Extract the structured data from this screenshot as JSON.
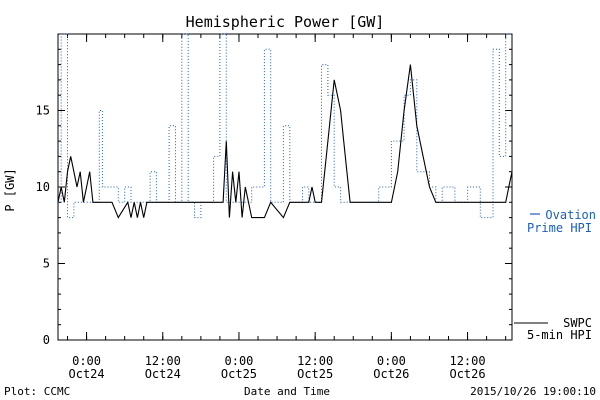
{
  "chart_data": {
    "type": "line",
    "title": "Hemispheric Power [GW]",
    "ylabel": "P [GW]",
    "xlabel": "Date and Time",
    "ylim": [
      0,
      20
    ],
    "xlim": [
      "2015-10-23 19:30",
      "2015-10-26 19:00"
    ],
    "y_ticks": [
      0,
      5,
      10,
      15
    ],
    "x_ticks": [
      {
        "time": "2015-10-24 00:00",
        "label": [
          "0:00",
          "Oct24"
        ]
      },
      {
        "time": "2015-10-24 12:00",
        "label": [
          "12:00",
          "Oct24"
        ]
      },
      {
        "time": "2015-10-25 00:00",
        "label": [
          "0:00",
          "Oct25"
        ]
      },
      {
        "time": "2015-10-25 12:00",
        "label": [
          "12:00",
          "Oct25"
        ]
      },
      {
        "time": "2015-10-26 00:00",
        "label": [
          "0:00",
          "Oct26"
        ]
      },
      {
        "time": "2015-10-26 12:00",
        "label": [
          "12:00",
          "Oct26"
        ]
      }
    ],
    "grid": false,
    "legend_position": "right",
    "series": [
      {
        "name": "Ovation Prime HPI",
        "legend_lines": [
          "Ovation",
          "Prime HPI"
        ],
        "color": "#1a5fc0",
        "style": "step-dotted",
        "points": [
          [
            "2015-10-23 19:30",
            9
          ],
          [
            "2015-10-23 20:00",
            20
          ],
          [
            "2015-10-23 21:00",
            8
          ],
          [
            "2015-10-23 22:00",
            9
          ],
          [
            "2015-10-24 02:00",
            15
          ],
          [
            "2015-10-24 02:30",
            10
          ],
          [
            "2015-10-24 05:00",
            9
          ],
          [
            "2015-10-24 06:00",
            10
          ],
          [
            "2015-10-24 07:00",
            9
          ],
          [
            "2015-10-24 10:00",
            11
          ],
          [
            "2015-10-24 11:00",
            9
          ],
          [
            "2015-10-24 13:00",
            14
          ],
          [
            "2015-10-24 14:00",
            9
          ],
          [
            "2015-10-24 15:00",
            20
          ],
          [
            "2015-10-24 16:00",
            9
          ],
          [
            "2015-10-24 17:00",
            8
          ],
          [
            "2015-10-24 18:00",
            9
          ],
          [
            "2015-10-24 20:00",
            12
          ],
          [
            "2015-10-24 21:00",
            20
          ],
          [
            "2015-10-24 22:00",
            9
          ],
          [
            "2015-10-25 02:00",
            10
          ],
          [
            "2015-10-25 04:00",
            19
          ],
          [
            "2015-10-25 05:00",
            9
          ],
          [
            "2015-10-25 07:00",
            14
          ],
          [
            "2015-10-25 08:00",
            9
          ],
          [
            "2015-10-25 10:00",
            10
          ],
          [
            "2015-10-25 11:00",
            9
          ],
          [
            "2015-10-25 12:30",
            9
          ],
          [
            "2015-10-25 13:00",
            18
          ],
          [
            "2015-10-25 14:00",
            16
          ],
          [
            "2015-10-25 15:00",
            10
          ],
          [
            "2015-10-25 16:00",
            9
          ],
          [
            "2015-10-25 22:00",
            10
          ],
          [
            "2015-10-26 00:00",
            13
          ],
          [
            "2015-10-26 02:00",
            16
          ],
          [
            "2015-10-26 03:00",
            17
          ],
          [
            "2015-10-26 04:00",
            11
          ],
          [
            "2015-10-26 06:00",
            10
          ],
          [
            "2015-10-26 07:00",
            9
          ],
          [
            "2015-10-26 08:00",
            10
          ],
          [
            "2015-10-26 10:00",
            9
          ],
          [
            "2015-10-26 12:00",
            10
          ],
          [
            "2015-10-26 14:00",
            8
          ],
          [
            "2015-10-26 16:00",
            19
          ],
          [
            "2015-10-26 17:00",
            12
          ],
          [
            "2015-10-26 18:00",
            20
          ],
          [
            "2015-10-26 19:00",
            20
          ]
        ]
      },
      {
        "name": "SWPC 5-min HPI",
        "legend_lines": [
          "SWPC",
          "5-min HPI"
        ],
        "color": "#000000",
        "style": "solid",
        "points": [
          [
            "2015-10-23 19:30",
            9
          ],
          [
            "2015-10-23 20:00",
            10
          ],
          [
            "2015-10-23 20:30",
            9
          ],
          [
            "2015-10-23 21:00",
            11
          ],
          [
            "2015-10-23 21:30",
            12
          ],
          [
            "2015-10-23 22:00",
            11
          ],
          [
            "2015-10-23 22:30",
            10
          ],
          [
            "2015-10-23 23:00",
            11
          ],
          [
            "2015-10-23 23:30",
            9
          ],
          [
            "2015-10-24 00:00",
            10
          ],
          [
            "2015-10-24 00:30",
            11
          ],
          [
            "2015-10-24 01:00",
            9
          ],
          [
            "2015-10-24 02:00",
            9
          ],
          [
            "2015-10-24 04:00",
            9
          ],
          [
            "2015-10-24 05:00",
            8
          ],
          [
            "2015-10-24 06:30",
            9
          ],
          [
            "2015-10-24 07:00",
            8
          ],
          [
            "2015-10-24 07:30",
            9
          ],
          [
            "2015-10-24 08:00",
            8
          ],
          [
            "2015-10-24 08:30",
            9
          ],
          [
            "2015-10-24 09:00",
            8
          ],
          [
            "2015-10-24 09:30",
            9
          ],
          [
            "2015-10-24 12:00",
            9
          ],
          [
            "2015-10-24 16:00",
            9
          ],
          [
            "2015-10-24 20:00",
            9
          ],
          [
            "2015-10-24 21:30",
            9
          ],
          [
            "2015-10-24 22:00",
            13
          ],
          [
            "2015-10-24 22:30",
            8
          ],
          [
            "2015-10-24 23:00",
            11
          ],
          [
            "2015-10-24 23:30",
            9
          ],
          [
            "2015-10-25 00:00",
            11
          ],
          [
            "2015-10-25 00:30",
            8
          ],
          [
            "2015-10-25 01:00",
            10
          ],
          [
            "2015-10-25 01:30",
            9
          ],
          [
            "2015-10-25 02:00",
            8
          ],
          [
            "2015-10-25 04:00",
            8
          ],
          [
            "2015-10-25 05:00",
            9
          ],
          [
            "2015-10-25 07:00",
            8
          ],
          [
            "2015-10-25 08:00",
            9
          ],
          [
            "2015-10-25 10:00",
            9
          ],
          [
            "2015-10-25 11:00",
            9
          ],
          [
            "2015-10-25 11:30",
            10
          ],
          [
            "2015-10-25 12:00",
            9
          ],
          [
            "2015-10-25 13:00",
            9
          ],
          [
            "2015-10-25 14:00",
            13
          ],
          [
            "2015-10-25 15:00",
            17
          ],
          [
            "2015-10-25 16:00",
            15
          ],
          [
            "2015-10-25 16:30",
            13
          ],
          [
            "2015-10-25 17:00",
            11
          ],
          [
            "2015-10-25 17:30",
            9
          ],
          [
            "2015-10-25 19:00",
            9
          ],
          [
            "2015-10-25 21:00",
            9
          ],
          [
            "2015-10-26 00:00",
            9
          ],
          [
            "2015-10-26 01:00",
            11
          ],
          [
            "2015-10-26 02:00",
            15
          ],
          [
            "2015-10-26 03:00",
            18
          ],
          [
            "2015-10-26 04:00",
            14
          ],
          [
            "2015-10-26 05:00",
            12
          ],
          [
            "2015-10-26 06:00",
            10
          ],
          [
            "2015-10-26 07:00",
            9
          ],
          [
            "2015-10-26 10:00",
            9
          ],
          [
            "2015-10-26 12:00",
            9
          ],
          [
            "2015-10-26 14:00",
            9
          ],
          [
            "2015-10-26 15:00",
            9
          ],
          [
            "2015-10-26 16:00",
            9
          ],
          [
            "2015-10-26 17:00",
            9
          ],
          [
            "2015-10-26 18:00",
            9
          ],
          [
            "2015-10-26 18:30",
            10
          ],
          [
            "2015-10-26 19:00",
            11
          ]
        ]
      }
    ]
  },
  "footer": {
    "left": "Plot: CCMC",
    "right": "2015/10/26 19:00:10"
  }
}
